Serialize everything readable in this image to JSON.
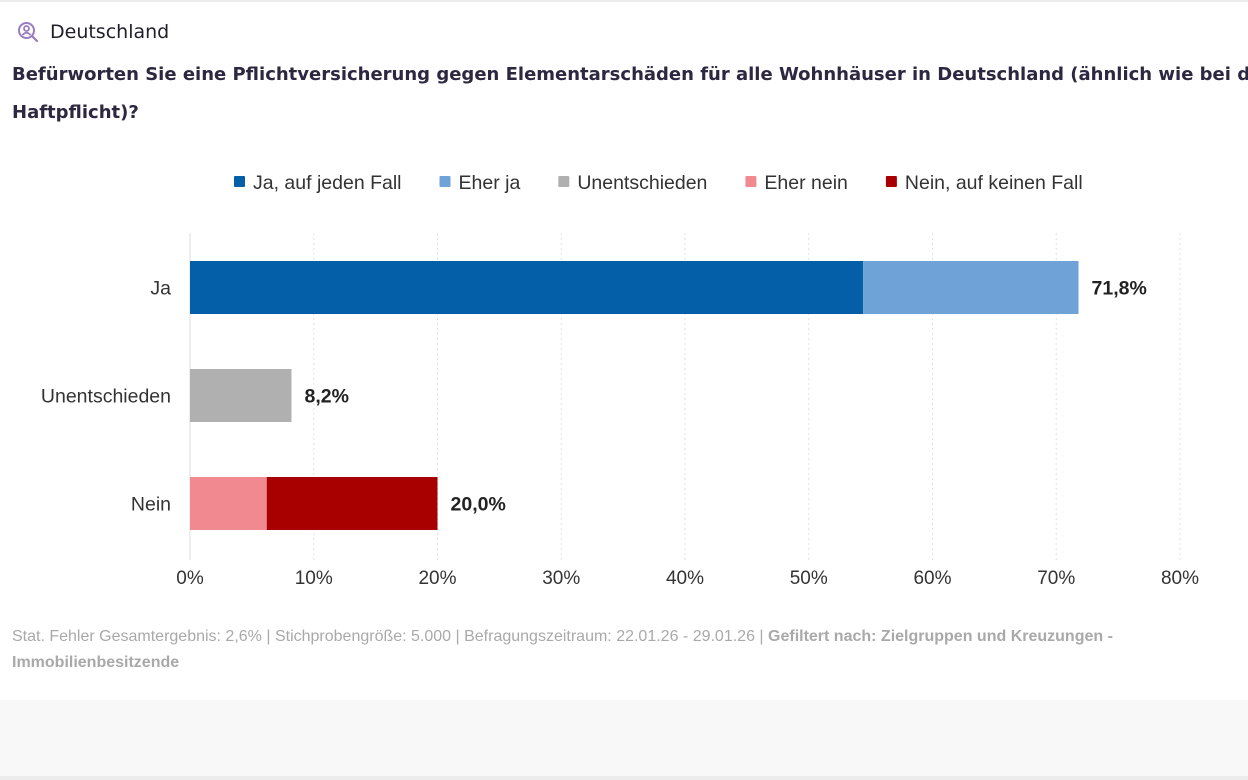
{
  "header": {
    "region": "Deutschland",
    "icon": "user-search-icon",
    "icon_color": "#9a7cc0"
  },
  "title": {
    "line1": "Befürworten Sie eine Pflichtversicherung gegen Elementarschäden für alle Wohnhäuser in Deutschland (ähnlich wie bei d",
    "line2": "Haftpflicht)?"
  },
  "chart_data": {
    "type": "bar",
    "orientation": "horizontal",
    "stacked": true,
    "categories": [
      "Ja",
      "Unentschieden",
      "Nein"
    ],
    "series": [
      {
        "name": "Ja, auf jeden Fall",
        "color": "#045ea8",
        "values": [
          54.4,
          0,
          0
        ]
      },
      {
        "name": "Eher ja",
        "color": "#6fa3d8",
        "values": [
          17.4,
          0,
          0
        ]
      },
      {
        "name": "Unentschieden",
        "color": "#b0b0b0",
        "values": [
          0,
          8.2,
          0
        ]
      },
      {
        "name": "Eher nein",
        "color": "#f08a90",
        "values": [
          0,
          0,
          6.2
        ]
      },
      {
        "name": "Nein, auf keinen Fall",
        "color": "#a80000",
        "values": [
          0,
          0,
          13.8
        ]
      }
    ],
    "totals": [
      "71,8%",
      "8,2%",
      "20,0%"
    ],
    "xlim": [
      0,
      80
    ],
    "xticks": [
      "0%",
      "10%",
      "20%",
      "30%",
      "40%",
      "50%",
      "60%",
      "70%",
      "80%"
    ],
    "grid": true,
    "legend": "top"
  },
  "footer": {
    "text": "Stat. Fehler Gesamtergebnis: 2,6% | Stichprobengröße: 5.000 | Befragungszeitraum: 22.01.26 - 29.01.26 | ",
    "filter": "Gefiltert nach: Zielgruppen und Kreuzungen - Immobilienbesitzende"
  }
}
